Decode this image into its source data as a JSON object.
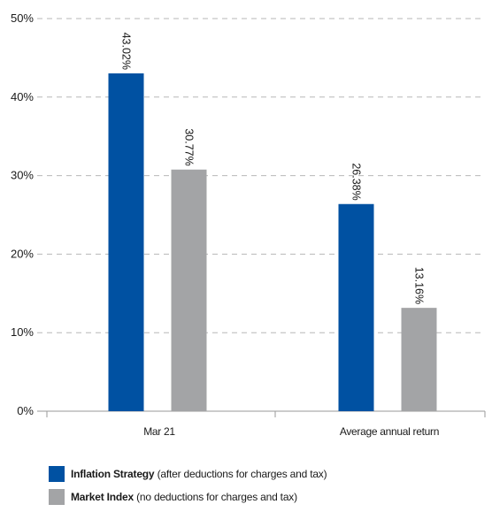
{
  "chart_data": {
    "type": "bar",
    "categories": [
      "Mar 21",
      "Average annual return"
    ],
    "series": [
      {
        "name": "Inflation Strategy",
        "values": [
          43.02,
          26.38
        ],
        "labels": [
          "43.02%",
          "26.38%"
        ],
        "color": "#0051a2"
      },
      {
        "name": "Market Index",
        "values": [
          30.77,
          13.16
        ],
        "labels": [
          "30.77%",
          "13.16%"
        ],
        "color": "#a3a4a6"
      }
    ],
    "ylim": [
      0,
      50
    ],
    "yticks": [
      {
        "value": 0,
        "label": "0%"
      },
      {
        "value": 10,
        "label": "10%"
      },
      {
        "value": 20,
        "label": "20%"
      },
      {
        "value": 30,
        "label": "30%"
      },
      {
        "value": 40,
        "label": "40%"
      },
      {
        "value": 50,
        "label": "50%"
      }
    ],
    "grid": true,
    "legend_placement": "bottom-left"
  },
  "legend": [
    {
      "name": "Inflation Strategy",
      "note": "(after deductions for charges and tax)",
      "color": "#0051a2"
    },
    {
      "name": "Market Index",
      "note": "(no deductions for charges and tax)",
      "color": "#a3a4a6"
    }
  ]
}
